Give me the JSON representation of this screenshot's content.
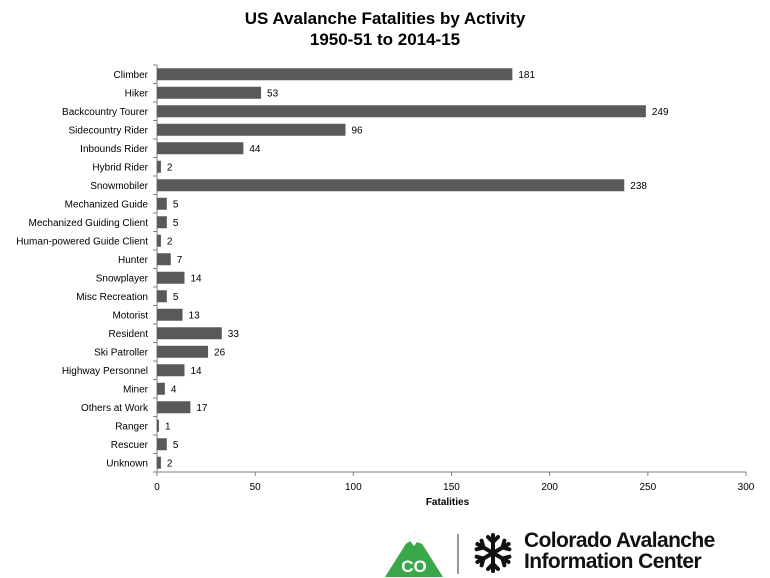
{
  "chart_data": {
    "type": "bar",
    "orientation": "horizontal",
    "title": "US Avalanche Fatalities by Activity",
    "subtitle": "1950-51 to 2014-15",
    "xlabel": "Fatalities",
    "ylabel": "",
    "xlim": [
      0,
      300
    ],
    "xticks": [
      "0",
      "50",
      "100",
      "150",
      "200",
      "250",
      "300"
    ],
    "grid": false,
    "categories": [
      "Climber",
      "Hiker",
      "Backcountry Tourer",
      "Sidecountry Rider",
      "Inbounds Rider",
      "Hybrid Rider",
      "Snowmobiler",
      "Mechanized Guide",
      "Mechanized Guiding Client",
      "Human-powered Guide Client",
      "Hunter",
      "Snowplayer",
      "Misc Recreation",
      "Motorist",
      "Resident",
      "Ski Patroller",
      "Highway Personnel",
      "Miner",
      "Others at Work",
      "Ranger",
      "Rescuer",
      "Unknown"
    ],
    "values": [
      181,
      53,
      249,
      96,
      44,
      2,
      238,
      5,
      5,
      2,
      7,
      14,
      5,
      13,
      33,
      26,
      14,
      4,
      17,
      1,
      5,
      2
    ],
    "bar_color": "#595959"
  },
  "footer": {
    "logo_text": "CO",
    "org_line1": "Colorado Avalanche",
    "org_line2": "Information Center",
    "logo_green": "#3aa84a"
  }
}
